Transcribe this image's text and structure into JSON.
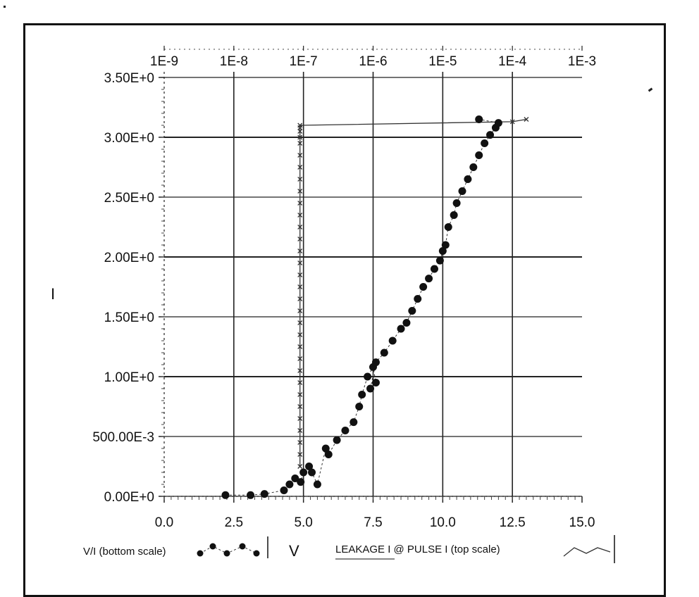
{
  "chart_data": {
    "type": "scatter",
    "ylabel": "I",
    "y_ticks": [
      "0.00E+0",
      "500.00E-3",
      "1.00E+0",
      "1.50E+0",
      "2.00E+0",
      "2.50E+0",
      "3.00E+0",
      "3.50E+0"
    ],
    "ylim": [
      0,
      3.5
    ],
    "x_bottom_ticks": [
      "0.0",
      "2.5",
      "5.0",
      "7.5",
      "10.0",
      "12.5",
      "15.0"
    ],
    "x_bottom_range": [
      0,
      15
    ],
    "x_top_ticks": [
      "1E-9",
      "1E-8",
      "1E-7",
      "1E-6",
      "1E-5",
      "1E-4",
      "1E-3"
    ],
    "x_top_log_range": [
      -9,
      -3
    ],
    "grid": true,
    "series": [
      {
        "name": "V/I (bottom scale)",
        "marker": "filled-circle",
        "color": "#111111",
        "x": [
          2.2,
          3.1,
          3.6,
          4.3,
          4.5,
          4.7,
          4.9,
          5.0,
          5.2,
          5.3,
          5.5,
          5.8,
          5.9,
          6.2,
          6.5,
          6.8,
          7.0,
          7.1,
          7.3,
          7.5,
          7.6,
          7.4,
          7.6,
          7.9,
          8.2,
          8.5,
          8.7,
          8.9,
          9.1,
          9.3,
          9.5,
          9.7,
          9.9,
          10.0,
          10.1,
          10.2,
          10.4,
          10.5,
          10.7,
          10.9,
          11.1,
          11.3,
          11.5,
          11.7,
          11.9,
          12.0,
          11.3
        ],
        "y": [
          0.01,
          0.01,
          0.02,
          0.05,
          0.1,
          0.15,
          0.12,
          0.2,
          0.25,
          0.2,
          0.1,
          0.4,
          0.35,
          0.47,
          0.55,
          0.62,
          0.75,
          0.85,
          1.0,
          1.08,
          0.95,
          0.9,
          1.12,
          1.2,
          1.3,
          1.4,
          1.45,
          1.55,
          1.65,
          1.75,
          1.82,
          1.9,
          1.97,
          2.05,
          2.1,
          2.25,
          2.35,
          2.45,
          2.55,
          2.65,
          2.75,
          2.85,
          2.95,
          3.02,
          3.08,
          3.12,
          3.15
        ]
      },
      {
        "name": "LEAKAGE I @ PULSE I (top scale)",
        "marker": "x",
        "color": "#333333",
        "x_log": [
          -7.05,
          -7.05,
          -7.05,
          -7.05,
          -7.05,
          -7.05,
          -7.05,
          -7.05,
          -7.05,
          -7.05,
          -7.05,
          -7.05,
          -7.05,
          -7.05,
          -7.05,
          -7.05,
          -7.05,
          -7.05,
          -7.05,
          -7.05,
          -7.05,
          -7.05,
          -7.05,
          -7.05,
          -7.05,
          -7.05,
          -7.05,
          -7.05,
          -7.05,
          -7.05,
          -7.05,
          -7.05,
          -4.0,
          -3.8
        ],
        "y": [
          0.25,
          0.35,
          0.45,
          0.55,
          0.65,
          0.75,
          0.85,
          0.95,
          1.05,
          1.15,
          1.25,
          1.35,
          1.45,
          1.55,
          1.65,
          1.75,
          1.85,
          1.95,
          2.05,
          2.15,
          2.25,
          2.35,
          2.45,
          2.55,
          2.65,
          2.75,
          2.85,
          2.95,
          3.0,
          3.05,
          3.08,
          3.1,
          3.13,
          3.15
        ]
      }
    ],
    "legend": {
      "series1_label": "V/I (bottom scale)",
      "unit_label": "V",
      "series2_label": "LEAKAGE I @ PULSE I (top scale)"
    }
  }
}
